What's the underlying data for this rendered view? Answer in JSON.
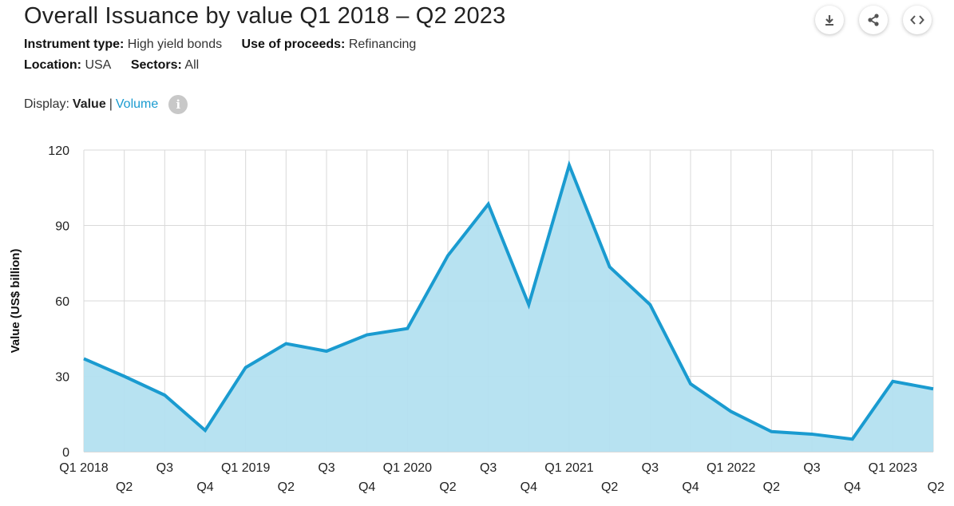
{
  "title": "Overall Issuance by value Q1 2018 – Q2 2023",
  "filters": {
    "instrument_type_label": "Instrument type:",
    "instrument_type_value": "High yield bonds",
    "use_of_proceeds_label": "Use of proceeds:",
    "use_of_proceeds_value": "Refinancing",
    "location_label": "Location:",
    "location_value": "USA",
    "sectors_label": "Sectors:",
    "sectors_value": "All"
  },
  "display": {
    "label": "Display:",
    "active": "Value",
    "separator": "|",
    "alternative": "Volume",
    "info_icon": "i"
  },
  "toolbar": {
    "download_icon": "download-icon",
    "share_icon": "share-icon",
    "embed_icon": "embed-icon"
  },
  "colors": {
    "line": "#1a9bd0",
    "fill": "#b3e0f0",
    "grid": "#d9d9d9"
  },
  "chart_data": {
    "type": "area",
    "x": [
      "Q1 2018",
      "Q2",
      "Q3",
      "Q4",
      "Q1 2019",
      "Q2",
      "Q3",
      "Q4",
      "Q1 2020",
      "Q2",
      "Q3",
      "Q4",
      "Q1 2021",
      "Q2",
      "Q3",
      "Q4",
      "Q1 2022",
      "Q2",
      "Q3",
      "Q4",
      "Q1 2023",
      "Q2"
    ],
    "values": [
      37,
      30,
      22.5,
      8.5,
      33.5,
      43,
      40,
      46.5,
      49,
      78,
      98.5,
      58.5,
      114,
      73.5,
      58.5,
      27,
      16,
      8,
      7,
      5,
      28,
      25
    ],
    "ylabel": "Value (US$ billion)",
    "ylim": [
      0,
      120
    ],
    "yticks": [
      0,
      30,
      60,
      90,
      120
    ],
    "grid": true
  }
}
